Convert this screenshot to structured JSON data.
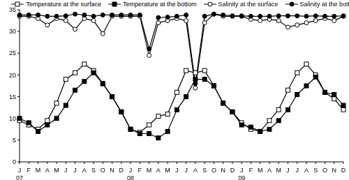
{
  "chart_data": {
    "type": "line",
    "categories": [
      "J",
      "F",
      "M",
      "A",
      "M",
      "J",
      "J",
      "A",
      "S",
      "O",
      "N",
      "D",
      "J",
      "F",
      "M",
      "A",
      "M",
      "J",
      "J",
      "A",
      "S",
      "O",
      "N",
      "D",
      "J",
      "F",
      "M",
      "A",
      "M",
      "J",
      "J",
      "A",
      "S",
      "O",
      "N",
      "D"
    ],
    "annotations": [
      {
        "text": "07",
        "x": 0
      },
      {
        "text": "08",
        "x": 12
      },
      {
        "text": "09",
        "x": 24
      }
    ],
    "series": [
      {
        "name": "Temperature at the surface",
        "color": "#000000",
        "marker": "square_open",
        "values": [
          9.5,
          8.5,
          7.5,
          9.5,
          13.5,
          19,
          20.5,
          22.5,
          21,
          18,
          15,
          11.5,
          7.5,
          6.8,
          8.5,
          10.5,
          11,
          16,
          21,
          20.5,
          21,
          17.5,
          13.5,
          11.5,
          9,
          7.5,
          7,
          9.5,
          12,
          16.5,
          20.5,
          22.5,
          20,
          16,
          14.5,
          12
        ]
      },
      {
        "name": "Temperature at the bottom",
        "color": "#000000",
        "marker": "square",
        "values": [
          10,
          9,
          7,
          8.5,
          10,
          13,
          16.5,
          18.5,
          20.5,
          18,
          15,
          11.5,
          7.5,
          6.5,
          6.5,
          5.5,
          7,
          12,
          15,
          19,
          19,
          17.5,
          13.5,
          11.5,
          8.5,
          8,
          7,
          7.5,
          9.5,
          12,
          15.5,
          17.5,
          19.5,
          16,
          15.5,
          13
        ]
      },
      {
        "name": "Salinity at the surface",
        "color": "#000000",
        "marker": "circle_open",
        "values": [
          33.5,
          33.5,
          33,
          31.5,
          33,
          32.5,
          30.5,
          33,
          32.5,
          29.5,
          33.5,
          33.5,
          33.5,
          33.5,
          24.5,
          32,
          32.5,
          33,
          32.5,
          17,
          32,
          34,
          33.5,
          33.5,
          33.5,
          32.8,
          32.5,
          32.8,
          32.5,
          31,
          31.5,
          32,
          32.5,
          33,
          32.5,
          33.5
        ]
      },
      {
        "name": "Salinity at the bottom",
        "color": "#000000",
        "marker": "circle",
        "values": [
          33.8,
          33.8,
          33.8,
          33.5,
          33.5,
          33.6,
          34,
          33.8,
          33.5,
          33.8,
          33.8,
          33.8,
          33.8,
          33.8,
          26,
          33.2,
          33.3,
          33.5,
          33.8,
          18,
          33.5,
          34,
          33.8,
          33.6,
          33.6,
          33.5,
          33.5,
          33.5,
          33.6,
          33.6,
          33.6,
          33.5,
          33.6,
          33.5,
          33.5,
          33.6
        ]
      }
    ],
    "ylim": [
      0,
      35
    ],
    "yticks": [
      0,
      5,
      10,
      15,
      20,
      25,
      30,
      35
    ]
  }
}
